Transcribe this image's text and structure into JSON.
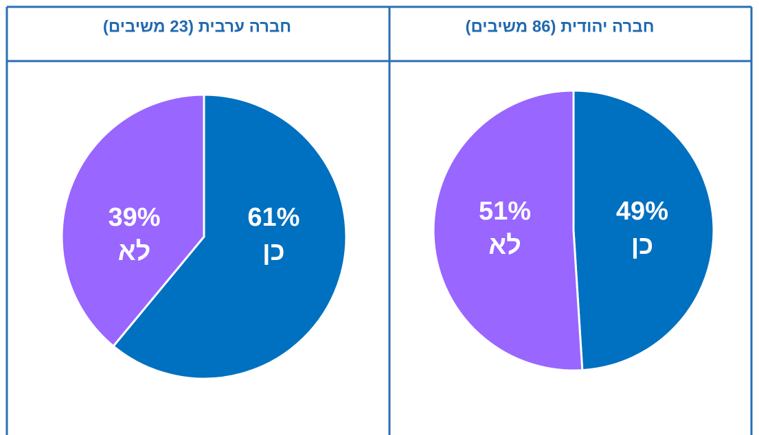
{
  "chart_data": [
    {
      "type": "pie",
      "title": "חברה יהודית (86 משיבים)",
      "categories": [
        "כן",
        "לא"
      ],
      "values": [
        49,
        51
      ],
      "value_labels": [
        "49%",
        "51%"
      ],
      "colors": [
        "#0070c0",
        "#9966ff"
      ]
    },
    {
      "type": "pie",
      "title": "חברה ערבית (23 משיבים)",
      "categories": [
        "כן",
        "לא"
      ],
      "values": [
        61,
        39
      ],
      "value_labels": [
        "61%",
        "39%"
      ],
      "colors": [
        "#0070c0",
        "#9966ff"
      ]
    }
  ]
}
